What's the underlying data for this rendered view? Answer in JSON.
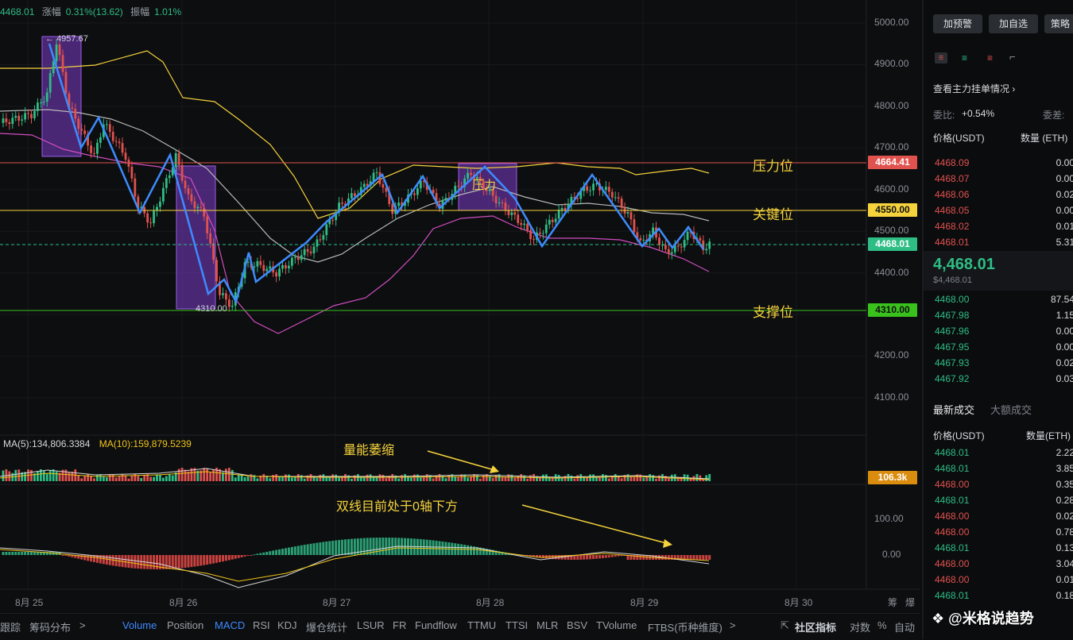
{
  "top_info": {
    "price": "4468.01",
    "change_label": "涨幅",
    "change_value": "0.31%(13.62)",
    "amp_label": "振幅",
    "amp_value": "1.01%"
  },
  "price_axis": [
    "5000.00",
    "4900.00",
    "4800.00",
    "4700.00",
    "4600.00",
    "4500.00",
    "4400.00",
    "4300.00",
    "4200.00",
    "4100.00"
  ],
  "macd_axis": [
    "100.00",
    "0.00"
  ],
  "date_axis": [
    "8月 25",
    "8月 26",
    "8月 27",
    "8月 28",
    "8月 29",
    "8月 30"
  ],
  "date_axis_right": [
    "筹",
    "爆"
  ],
  "price_tags": {
    "resistance": "4664.41",
    "key": "4550.00",
    "current": "4468.01",
    "support": "4310.00",
    "volume": "106.3k"
  },
  "colors": {
    "up": "#2ebd85",
    "down": "#e0524e",
    "resistance_line": "#e0524e",
    "key_line": "#f5d33c",
    "support_line": "#39c21b",
    "zigzag": "#3d8bfd",
    "boll_upper": "#f5d33c",
    "boll_mid": "#b8b8b8",
    "boll_lower": "#d04ec0",
    "highlight": "#7b3cc9"
  },
  "chart_labels": {
    "high": "4957.67",
    "low": "4310.00",
    "box_label": "压力"
  },
  "annotations": {
    "resistance": "压力位",
    "key": "关键位",
    "support": "支撑位",
    "volume_note": "量能萎缩",
    "macd_note": "双线目前处于0轴下方"
  },
  "volume_indicator": {
    "ma5": "MA(5):134,806.3384",
    "ma10": "MA(10):159,879.5239"
  },
  "bottom_tabs": [
    "跟踪",
    "筹码分布",
    ">",
    "Volume",
    "Position",
    "MACD",
    "RSI",
    "KDJ",
    "爆仓统计",
    "LSUR",
    "FR",
    "Fundflow",
    "TTMU",
    "TTSI",
    "MLR",
    "BSV",
    "TVolume",
    "FTBS(币种维度)",
    ">"
  ],
  "bottom_right": {
    "community": "社区指标",
    "pair": "对数",
    "percent": "%",
    "auto": "自动"
  },
  "watermark": "@米格说趋势",
  "side_panel": {
    "buttons": [
      "加预警",
      "加自选",
      "策略"
    ],
    "order_book_link": "查看主力挂单情况",
    "ratio_label": "委比:",
    "ratio_value": "+0.54%",
    "diff_label": "委差:",
    "col_price": "价格(USDT)",
    "col_qty": "数量 (ETH)",
    "asks": [
      {
        "p": "4468.09",
        "q": "0.00"
      },
      {
        "p": "4468.07",
        "q": "0.00"
      },
      {
        "p": "4468.06",
        "q": "0.02"
      },
      {
        "p": "4468.05",
        "q": "0.00"
      },
      {
        "p": "4468.02",
        "q": "0.01"
      },
      {
        "p": "4468.01",
        "q": "5.31"
      }
    ],
    "mid_price": "4,468.01",
    "mid_price_usd": "$4,468.01",
    "bids": [
      {
        "p": "4468.00",
        "q": "87.54"
      },
      {
        "p": "4467.98",
        "q": "1.15"
      },
      {
        "p": "4467.96",
        "q": "0.00"
      },
      {
        "p": "4467.95",
        "q": "0.00"
      },
      {
        "p": "4467.93",
        "q": "0.02"
      },
      {
        "p": "4467.92",
        "q": "0.03"
      }
    ],
    "trades_tab_active": "最新成交",
    "trades_tab": "大额成交",
    "trades_col_price": "价格(USDT)",
    "trades_col_qty": "数量(ETH)",
    "trades": [
      {
        "p": "4468.01",
        "q": "2.22",
        "side": "buy"
      },
      {
        "p": "4468.01",
        "q": "3.85",
        "side": "buy"
      },
      {
        "p": "4468.00",
        "q": "0.35",
        "side": "sell"
      },
      {
        "p": "4468.01",
        "q": "0.28",
        "side": "buy"
      },
      {
        "p": "4468.00",
        "q": "0.02",
        "side": "sell"
      },
      {
        "p": "4468.00",
        "q": "0.78",
        "side": "sell"
      },
      {
        "p": "4468.01",
        "q": "0.13",
        "side": "buy"
      },
      {
        "p": "4468.00",
        "q": "3.04",
        "side": "sell"
      },
      {
        "p": "4468.00",
        "q": "0.01",
        "side": "sell"
      },
      {
        "p": "4468.01",
        "q": "0.18",
        "side": "buy"
      }
    ]
  }
}
